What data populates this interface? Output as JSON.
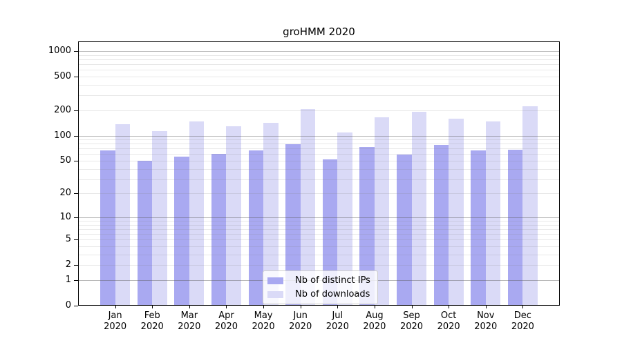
{
  "chart_data": {
    "type": "bar",
    "title": "groHMM 2020",
    "year": "2020",
    "categories": [
      "Jan",
      "Feb",
      "Mar",
      "Apr",
      "May",
      "Jun",
      "Jul",
      "Aug",
      "Sep",
      "Oct",
      "Nov",
      "Dec"
    ],
    "series": [
      {
        "name": "Nb of distinct IPs",
        "color": "#a9a9f1",
        "values": [
          67,
          50,
          56,
          61,
          66,
          79,
          52,
          73,
          59,
          77,
          66,
          68
        ]
      },
      {
        "name": "Nb of downloads",
        "color": "#dadaf7",
        "values": [
          136,
          113,
          147,
          128,
          141,
          205,
          109,
          165,
          192,
          158,
          147,
          222
        ]
      }
    ],
    "y_scale": "log10(1+x)",
    "ylim": [
      0,
      1300
    ],
    "y_ticks": [
      0,
      1,
      2,
      5,
      10,
      20,
      50,
      100,
      200,
      500,
      1000
    ],
    "gridlines_dark": [
      1,
      10,
      100,
      1000
    ],
    "gridlines_light": [
      2,
      3,
      4,
      5,
      6,
      7,
      8,
      9,
      20,
      30,
      40,
      50,
      60,
      70,
      80,
      90,
      200,
      300,
      400,
      500,
      600,
      700,
      800,
      900
    ],
    "bar_group_width": 0.8,
    "grid_over_bars": true,
    "legend_position": "lower center inside plot",
    "colors": {
      "axis": "#000000",
      "text": "#000000",
      "grid_dark": "#a6a6a6",
      "grid_light": "#e8e8e8"
    }
  }
}
